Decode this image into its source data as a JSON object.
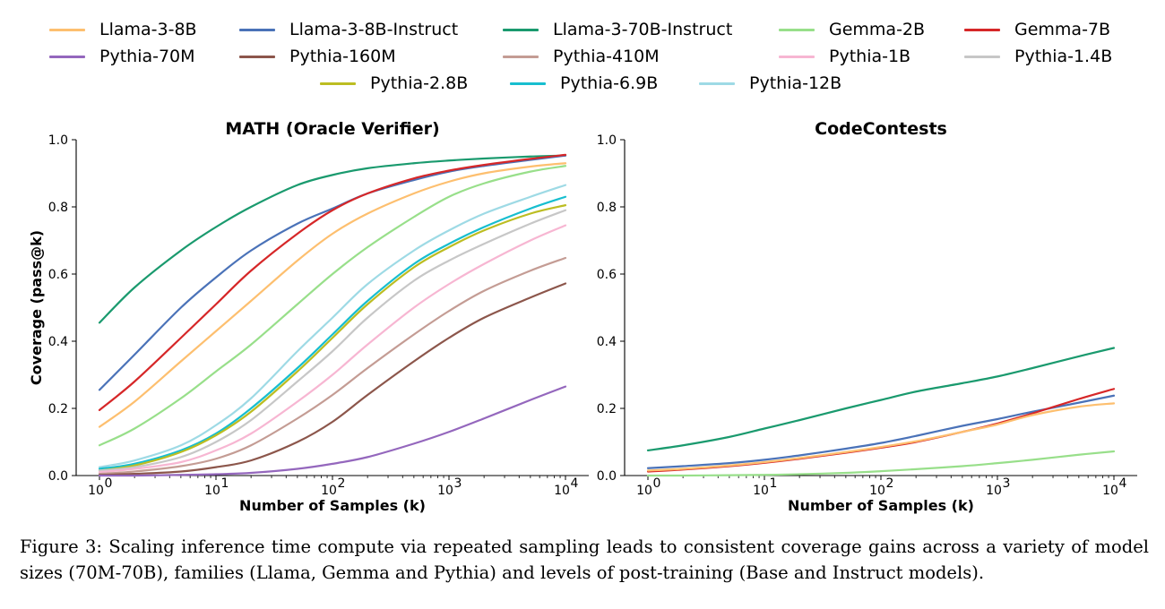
{
  "legend": [
    {
      "name": "Llama-3-8B",
      "color": "#fdbf6f"
    },
    {
      "name": "Llama-3-8B-Instruct",
      "color": "#4a72b8"
    },
    {
      "name": "Llama-3-70B-Instruct",
      "color": "#1a9a6e"
    },
    {
      "name": "Gemma-2B",
      "color": "#98df8a"
    },
    {
      "name": "Gemma-7B",
      "color": "#d62728"
    },
    {
      "name": "Pythia-70M",
      "color": "#9467bd"
    },
    {
      "name": "Pythia-160M",
      "color": "#8c564b"
    },
    {
      "name": "Pythia-410M",
      "color": "#c49c94"
    },
    {
      "name": "Pythia-1B",
      "color": "#f7b6d2"
    },
    {
      "name": "Pythia-1.4B",
      "color": "#c7c7c7"
    },
    {
      "name": "Pythia-2.8B",
      "color": "#bcbd22"
    },
    {
      "name": "Pythia-6.9B",
      "color": "#17becf"
    },
    {
      "name": "Pythia-12B",
      "color": "#9edae5"
    }
  ],
  "caption": "Figure 3: Scaling inference time compute via repeated sampling leads to consistent coverage gains across a variety of model sizes (70M-70B), families (Llama, Gemma and Pythia) and levels of post-training (Base and Instruct models).",
  "chart_data": [
    {
      "type": "line",
      "title": "MATH (Oracle Verifier)",
      "xlabel": "Number of Samples (k)",
      "ylabel": "Coverage (pass@k)",
      "xscale": "log",
      "xlim": [
        1,
        10000
      ],
      "ylim": [
        0,
        1.0
      ],
      "yticks": [
        "0.0",
        "0.2",
        "0.4",
        "0.6",
        "0.8",
        "1.0"
      ],
      "xticks": [
        {
          "value": 1,
          "base": "10",
          "exp": "0"
        },
        {
          "value": 10,
          "base": "10",
          "exp": "1"
        },
        {
          "value": 100,
          "base": "10",
          "exp": "2"
        },
        {
          "value": 1000,
          "base": "10",
          "exp": "3"
        },
        {
          "value": 10000,
          "base": "10",
          "exp": "4"
        }
      ],
      "x": [
        1,
        2,
        5,
        10,
        20,
        50,
        100,
        200,
        500,
        1000,
        2000,
        5000,
        10000
      ],
      "series": [
        {
          "name": "Llama-3-70B-Instruct",
          "values": [
            0.455,
            0.56,
            0.67,
            0.74,
            0.8,
            0.865,
            0.895,
            0.915,
            0.93,
            0.938,
            0.944,
            0.95,
            0.953
          ]
        },
        {
          "name": "Llama-3-8B-Instruct",
          "values": [
            0.255,
            0.36,
            0.5,
            0.59,
            0.67,
            0.75,
            0.795,
            0.84,
            0.88,
            0.905,
            0.922,
            0.94,
            0.953
          ]
        },
        {
          "name": "Gemma-7B",
          "values": [
            0.195,
            0.28,
            0.41,
            0.51,
            0.61,
            0.72,
            0.79,
            0.84,
            0.885,
            0.908,
            0.925,
            0.943,
            0.955
          ]
        },
        {
          "name": "Llama-3-8B",
          "values": [
            0.145,
            0.22,
            0.34,
            0.43,
            0.52,
            0.64,
            0.72,
            0.78,
            0.84,
            0.875,
            0.9,
            0.92,
            0.93
          ]
        },
        {
          "name": "Gemma-2B",
          "values": [
            0.09,
            0.14,
            0.23,
            0.31,
            0.39,
            0.51,
            0.6,
            0.68,
            0.77,
            0.83,
            0.87,
            0.905,
            0.922
          ]
        },
        {
          "name": "Pythia-12B",
          "values": [
            0.025,
            0.045,
            0.09,
            0.15,
            0.23,
            0.37,
            0.47,
            0.57,
            0.67,
            0.73,
            0.78,
            0.83,
            0.865
          ]
        },
        {
          "name": "Pythia-6.9B",
          "values": [
            0.02,
            0.035,
            0.075,
            0.125,
            0.2,
            0.32,
            0.42,
            0.52,
            0.63,
            0.69,
            0.74,
            0.795,
            0.83
          ]
        },
        {
          "name": "Pythia-2.8B",
          "values": [
            0.015,
            0.03,
            0.07,
            0.12,
            0.19,
            0.31,
            0.41,
            0.51,
            0.62,
            0.68,
            0.73,
            0.78,
            0.805
          ]
        },
        {
          "name": "Pythia-1.4B",
          "values": [
            0.015,
            0.025,
            0.055,
            0.1,
            0.165,
            0.28,
            0.37,
            0.47,
            0.58,
            0.64,
            0.69,
            0.75,
            0.79
          ]
        },
        {
          "name": "Pythia-1B",
          "values": [
            0.01,
            0.02,
            0.04,
            0.075,
            0.125,
            0.22,
            0.3,
            0.39,
            0.5,
            0.57,
            0.63,
            0.7,
            0.745
          ]
        },
        {
          "name": "Pythia-410M",
          "values": [
            0.005,
            0.012,
            0.028,
            0.05,
            0.09,
            0.17,
            0.24,
            0.32,
            0.42,
            0.49,
            0.55,
            0.61,
            0.648
          ]
        },
        {
          "name": "Pythia-160M",
          "values": [
            0.002,
            0.005,
            0.012,
            0.025,
            0.045,
            0.1,
            0.16,
            0.24,
            0.34,
            0.41,
            0.47,
            0.53,
            0.572
          ]
        },
        {
          "name": "Pythia-70M",
          "values": [
            0.0,
            0.0,
            0.002,
            0.004,
            0.008,
            0.02,
            0.035,
            0.055,
            0.095,
            0.13,
            0.17,
            0.225,
            0.265
          ]
        }
      ]
    },
    {
      "type": "line",
      "title": "CodeContests",
      "xlabel": "Number of Samples (k)",
      "ylabel": "",
      "xscale": "log",
      "xlim": [
        1,
        10000
      ],
      "ylim": [
        0,
        1.0
      ],
      "yticks": [
        "0.0",
        "0.2",
        "0.4",
        "0.6",
        "0.8",
        "1.0"
      ],
      "xticks": [
        {
          "value": 1,
          "base": "10",
          "exp": "0"
        },
        {
          "value": 10,
          "base": "10",
          "exp": "1"
        },
        {
          "value": 100,
          "base": "10",
          "exp": "2"
        },
        {
          "value": 1000,
          "base": "10",
          "exp": "3"
        },
        {
          "value": 10000,
          "base": "10",
          "exp": "4"
        }
      ],
      "x": [
        1,
        2,
        5,
        10,
        20,
        50,
        100,
        200,
        500,
        1000,
        2000,
        5000,
        10000
      ],
      "series": [
        {
          "name": "Llama-3-70B-Instruct",
          "values": [
            0.075,
            0.09,
            0.115,
            0.14,
            0.165,
            0.2,
            0.225,
            0.25,
            0.275,
            0.295,
            0.32,
            0.355,
            0.38
          ]
        },
        {
          "name": "Llama-3-8B-Instruct",
          "values": [
            0.022,
            0.028,
            0.037,
            0.047,
            0.06,
            0.08,
            0.097,
            0.118,
            0.148,
            0.168,
            0.19,
            0.217,
            0.238
          ]
        },
        {
          "name": "Gemma-7B",
          "values": [
            0.012,
            0.018,
            0.028,
            0.038,
            0.05,
            0.068,
            0.083,
            0.1,
            0.13,
            0.155,
            0.185,
            0.228,
            0.258
          ]
        },
        {
          "name": "Llama-3-8B",
          "values": [
            0.015,
            0.02,
            0.03,
            0.04,
            0.052,
            0.07,
            0.085,
            0.102,
            0.13,
            0.152,
            0.18,
            0.205,
            0.215
          ]
        },
        {
          "name": "Gemma-2B",
          "values": [
            0.0,
            0.0,
            0.001,
            0.002,
            0.004,
            0.008,
            0.013,
            0.019,
            0.028,
            0.037,
            0.047,
            0.062,
            0.072
          ]
        }
      ]
    }
  ]
}
